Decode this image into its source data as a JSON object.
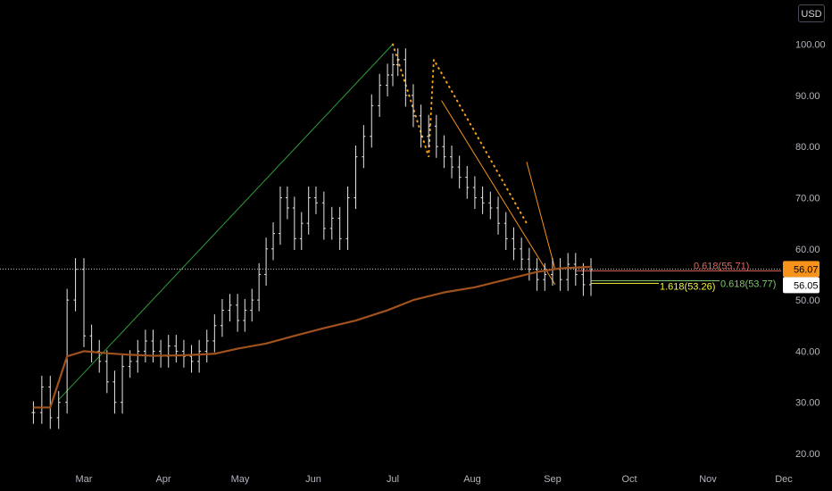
{
  "currency": "USD",
  "colors": {
    "background": "#000000",
    "bars": "#e6e6e6",
    "ma": "#a0521e",
    "uptrend": "#2e9c3a",
    "downtrend": "#f7931a",
    "dotted": "#f7a21a",
    "fib_low": "#f5f53c",
    "fib_mid": "#7ec86a",
    "fib_high": "#e3675c",
    "price_line": "#c8c8c8",
    "badge_orange": "#f7931a",
    "badge_white": "#ffffff"
  },
  "chart_data": {
    "type": "line",
    "title": "",
    "xlabel": "",
    "ylabel": "",
    "x_ticks": [
      "Mar",
      "Apr",
      "May",
      "Jun",
      "Jul",
      "Aug",
      "Sep",
      "Oct",
      "Nov",
      "Dec"
    ],
    "x_range_months": [
      "Feb",
      "Dec"
    ],
    "y_ticks": [
      20,
      30,
      40,
      50,
      60,
      70,
      80,
      90,
      100
    ],
    "ylim": [
      18,
      104
    ],
    "grid": false,
    "price_series": {
      "name": "",
      "style": "ohlc-bars",
      "x": [
        "Feb-11",
        "Feb-14",
        "Feb-17",
        "Feb-20",
        "Feb-23",
        "Feb-26",
        "Mar-01",
        "Mar-04",
        "Mar-07",
        "Mar-10",
        "Mar-13",
        "Mar-16",
        "Mar-19",
        "Mar-22",
        "Mar-25",
        "Mar-28",
        "Mar-31",
        "Apr-03",
        "Apr-06",
        "Apr-09",
        "Apr-12",
        "Apr-15",
        "Apr-18",
        "Apr-21",
        "Apr-24",
        "Apr-27",
        "Apr-30",
        "May-03",
        "May-06",
        "May-09",
        "May-12",
        "May-15",
        "May-18",
        "May-21",
        "May-24",
        "May-27",
        "May-30",
        "Jun-02",
        "Jun-05",
        "Jun-08",
        "Jun-11",
        "Jun-14",
        "Jun-17",
        "Jun-20",
        "Jun-23",
        "Jun-26",
        "Jun-29",
        "Jul-01",
        "Jul-03",
        "Jul-06",
        "Jul-09",
        "Jul-12",
        "Jul-15",
        "Jul-18",
        "Jul-21",
        "Jul-24",
        "Jul-27",
        "Jul-30",
        "Aug-02",
        "Aug-05",
        "Aug-08",
        "Aug-11",
        "Aug-14",
        "Aug-17",
        "Aug-20",
        "Aug-23",
        "Aug-26",
        "Aug-29",
        "Sep-01",
        "Sep-04",
        "Sep-07",
        "Sep-10",
        "Sep-13",
        "Sep-16"
      ],
      "close": [
        28,
        33,
        27,
        30,
        50,
        56,
        43,
        40,
        38,
        34,
        30,
        37,
        38,
        40,
        42,
        40,
        39,
        41,
        40,
        39,
        38,
        40,
        42,
        45,
        48,
        49,
        46,
        48,
        50,
        55,
        60,
        63,
        70,
        68,
        62,
        65,
        70,
        69,
        64,
        66,
        62,
        70,
        78,
        82,
        88,
        92,
        94,
        96,
        97,
        90,
        86,
        82,
        84,
        80,
        78,
        76,
        74,
        72,
        70,
        69,
        68,
        65,
        62,
        60,
        58,
        56,
        54,
        55,
        56,
        54,
        57,
        55,
        53,
        56
      ]
    },
    "ma_series": {
      "name": "",
      "x": [
        "Feb-11",
        "Feb-17",
        "Feb-23",
        "Mar-01",
        "Mar-10",
        "Mar-19",
        "Mar-28",
        "Apr-09",
        "Apr-21",
        "Apr-30",
        "May-12",
        "May-24",
        "Jun-05",
        "Jun-17",
        "Jun-29",
        "Jul-09",
        "Jul-21",
        "Aug-02",
        "Aug-14",
        "Aug-26",
        "Sep-04",
        "Sep-16"
      ],
      "values": [
        29,
        29,
        39,
        40,
        39.6,
        39.3,
        39.1,
        39.2,
        39.5,
        40.5,
        41.5,
        43,
        44.5,
        46,
        48,
        50,
        51.5,
        52.5,
        54,
        55.5,
        56.2,
        56.5
      ]
    },
    "annotations": {
      "fib_labels": [
        {
          "text": "0.618(55.71)",
          "color_key": "fib_high"
        },
        {
          "text": "1.618(53.26)",
          "color_key": "fib_low"
        },
        {
          "text": "0.618(53.77)",
          "color_key": "fib_mid"
        }
      ],
      "price_badges": [
        {
          "text": "56.07",
          "value": 56.07,
          "color_key": "badge_orange"
        },
        {
          "text": "56.05",
          "value": 56.05,
          "color_key": "badge_white"
        }
      ],
      "trendlines": [
        {
          "from": [
            "Feb-20",
            30.5
          ],
          "to": [
            "Jul-01",
            100
          ],
          "color_key": "uptrend"
        },
        {
          "from": [
            "Jul-20",
            89
          ],
          "to": [
            "Sep-02",
            53
          ],
          "color_key": "downtrend"
        },
        {
          "from": [
            "Aug-22",
            77
          ],
          "to": [
            "Sep-02",
            56
          ],
          "color_key": "downtrend"
        }
      ]
    }
  }
}
